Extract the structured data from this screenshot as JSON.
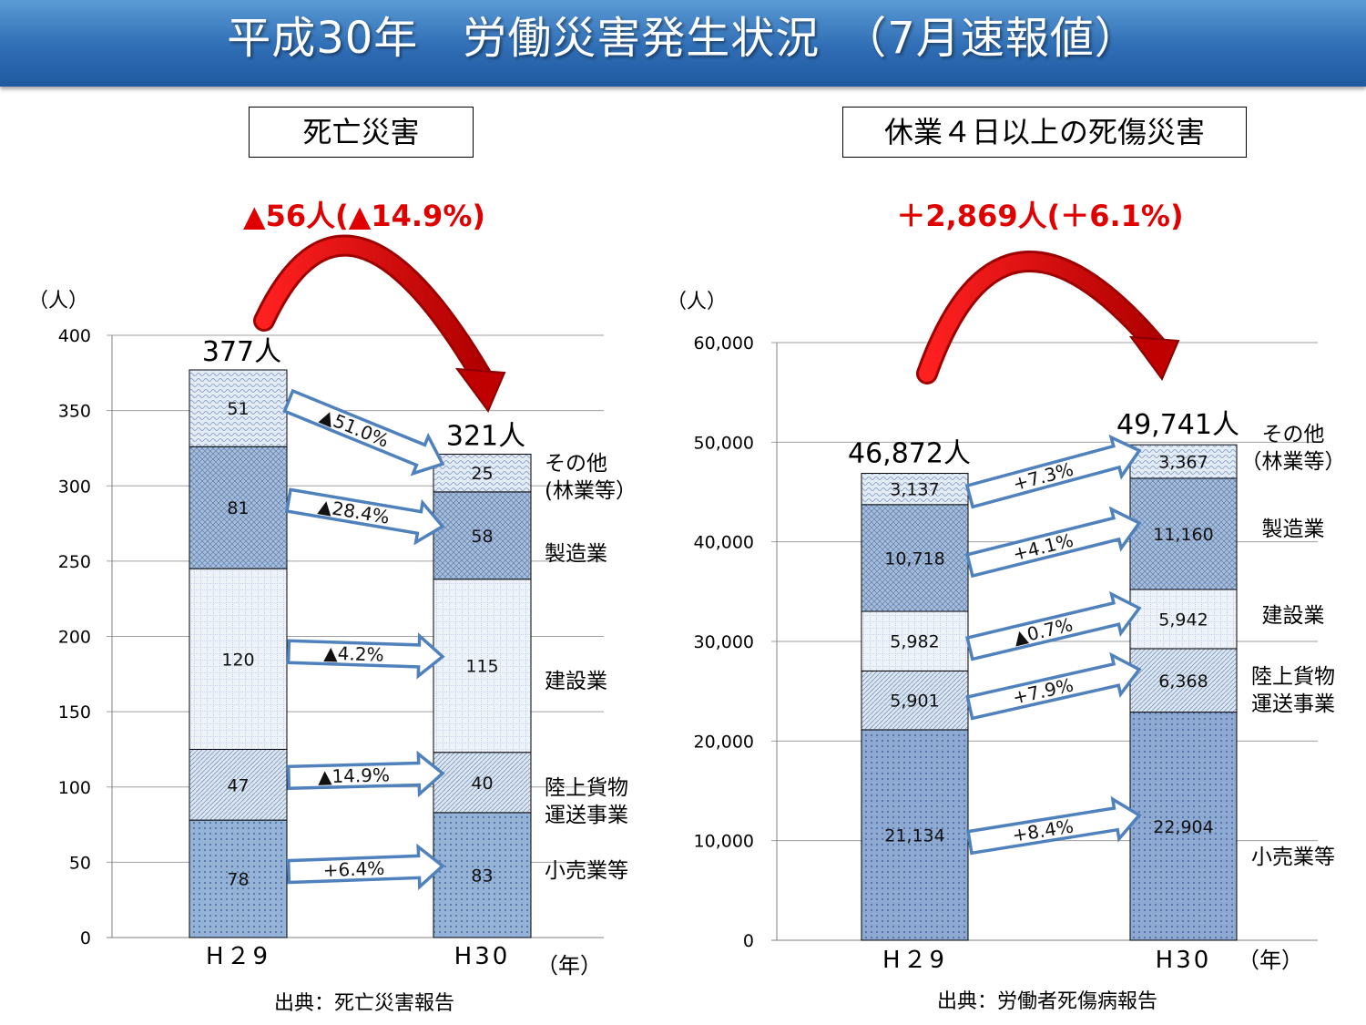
{
  "header": {
    "title": "平成30年　労働災害発生状況　（7月速報値）"
  },
  "panels": {
    "left": {
      "title": "死亡災害",
      "change": "▲56人(▲14.9%)",
      "source": "出典：死亡災害報告"
    },
    "right": {
      "title": "休業４日以上の死傷災害",
      "change": "＋2,869人(＋6.1%)",
      "source": "出典：労働者死傷病報告"
    }
  },
  "chart_data": [
    {
      "type": "bar",
      "stacked": true,
      "categories": [
        "H２9",
        "H30"
      ],
      "unit_label": "（人）",
      "x_unit": "（年）",
      "ylim": [
        0,
        400
      ],
      "yticks": [
        "0",
        "50",
        "100",
        "150",
        "200",
        "250",
        "300",
        "350",
        "400"
      ],
      "totals": [
        "377人",
        "321人"
      ],
      "series": [
        {
          "name": "小売業等",
          "values": [
            78,
            83
          ],
          "labels": [
            "78",
            "83"
          ],
          "change": "+6.4%",
          "fill": "#95b3d7"
        },
        {
          "name": "陸上貨物運送事業",
          "values": [
            47,
            40
          ],
          "labels": [
            "47",
            "40"
          ],
          "change": "▲14.9%",
          "fill": "#dce6f1"
        },
        {
          "name": "建設業",
          "values": [
            120,
            115
          ],
          "labels": [
            "120",
            "115"
          ],
          "change": "▲4.2%",
          "fill": "#eef3fa"
        },
        {
          "name": "製造業",
          "values": [
            81,
            58
          ],
          "labels": [
            "81",
            "58"
          ],
          "change": "▲28.4%",
          "fill": "#a6bedc"
        },
        {
          "name": "その他（林業等）",
          "values": [
            51,
            25
          ],
          "labels": [
            "51",
            "25"
          ],
          "change": "▲51.0%",
          "fill": "#e3ebf5"
        }
      ],
      "legend": [
        {
          "lines": [
            "小売業等"
          ]
        },
        {
          "lines": [
            "陸上貨物",
            "運送事業"
          ]
        },
        {
          "lines": [
            "建設業"
          ]
        },
        {
          "lines": [
            "製造業"
          ]
        },
        {
          "lines": [
            "その他",
            "(林業等）"
          ]
        }
      ],
      "grid": true
    },
    {
      "type": "bar",
      "stacked": true,
      "categories": [
        "H２9",
        "H30"
      ],
      "unit_label": "（人）",
      "x_unit": "（年）",
      "ylim": [
        0,
        60000
      ],
      "yticks": [
        "0",
        "10,000",
        "20,000",
        "30,000",
        "40,000",
        "50,000",
        "60,000"
      ],
      "totals": [
        "46,872人",
        "49,741人"
      ],
      "series": [
        {
          "name": "小売業等",
          "values": [
            21134,
            22904
          ],
          "labels": [
            "21,134",
            "22,904"
          ],
          "change": "+8.4%",
          "fill": "#8eaad3"
        },
        {
          "name": "陸上貨物運送事業",
          "values": [
            5901,
            6368
          ],
          "labels": [
            "5,901",
            "6,368"
          ],
          "change": "+7.9%",
          "fill": "#dce6f1"
        },
        {
          "name": "建設業",
          "values": [
            5982,
            5942
          ],
          "labels": [
            "5,982",
            "5,942"
          ],
          "change": "▲0.7%",
          "fill": "#eef3fa"
        },
        {
          "name": "製造業",
          "values": [
            10718,
            11160
          ],
          "labels": [
            "10,718",
            "11,160"
          ],
          "change": "+4.1%",
          "fill": "#a6bedc"
        },
        {
          "name": "その他（林業等）",
          "values": [
            3137,
            3367
          ],
          "labels": [
            "3,137",
            "3,367"
          ],
          "change": "+7.3%",
          "fill": "#e3ebf5"
        }
      ],
      "legend": [
        {
          "lines": [
            "小売業等"
          ]
        },
        {
          "lines": [
            "陸上貨物",
            "運送事業"
          ]
        },
        {
          "lines": [
            "建設業"
          ]
        },
        {
          "lines": [
            "製造業"
          ]
        },
        {
          "lines": [
            "その他",
            "（林業等）"
          ]
        }
      ],
      "grid": true
    }
  ]
}
